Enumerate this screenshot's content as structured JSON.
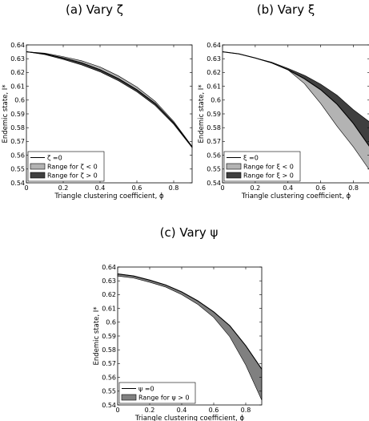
{
  "chart_data": [
    {
      "type": "area",
      "title": "(a) Vary ζ",
      "xlabel": "Triangle clustering coefficient, ϕ",
      "ylabel": "Endemic state, I*",
      "xlim": [
        0,
        0.9
      ],
      "ylim": [
        0.54,
        0.64
      ],
      "xticks": [
        "0",
        "0.2",
        "0.4",
        "0.6",
        "0.8"
      ],
      "yticks": [
        "0.54",
        "0.55",
        "0.56",
        "0.57",
        "0.58",
        "0.59",
        "0.6",
        "0.61",
        "0.62",
        "0.63",
        "0.64"
      ],
      "legend_position": "bottom-left",
      "x": [
        0,
        0.1,
        0.2,
        0.3,
        0.4,
        0.5,
        0.6,
        0.7,
        0.8,
        0.9
      ],
      "series": [
        {
          "name": "ζ =0",
          "kind": "line",
          "values": [
            0.635,
            0.6335,
            0.6305,
            0.627,
            0.622,
            0.6155,
            0.6075,
            0.5975,
            0.5835,
            0.566
          ]
        },
        {
          "name": "Range for ζ < 0",
          "kind": "band",
          "color": "#b3b3b3",
          "lower": [
            0.635,
            0.6335,
            0.6305,
            0.627,
            0.622,
            0.6155,
            0.6075,
            0.5975,
            0.5835,
            0.566
          ],
          "upper": [
            0.635,
            0.634,
            0.6315,
            0.6285,
            0.624,
            0.6175,
            0.6095,
            0.599,
            0.5845,
            0.5665
          ]
        },
        {
          "name": "Range for ζ > 0",
          "kind": "band",
          "color": "#3f3f3f",
          "lower": [
            0.635,
            0.633,
            0.6295,
            0.6255,
            0.6205,
            0.614,
            0.606,
            0.596,
            0.5825,
            0.5655
          ],
          "upper": [
            0.635,
            0.6335,
            0.6305,
            0.627,
            0.622,
            0.6155,
            0.6075,
            0.5975,
            0.5835,
            0.566
          ]
        }
      ]
    },
    {
      "type": "area",
      "title": "(b) Vary ξ",
      "xlabel": "Triangle clustering coefficient, ϕ",
      "ylabel": "Endemic state, I*",
      "xlim": [
        0,
        0.9
      ],
      "ylim": [
        0.54,
        0.64
      ],
      "xticks": [
        "0",
        "0.2",
        "0.4",
        "0.6",
        "0.8"
      ],
      "yticks": [
        "0.54",
        "0.55",
        "0.56",
        "0.57",
        "0.58",
        "0.59",
        "0.6",
        "0.61",
        "0.62",
        "0.63",
        "0.64"
      ],
      "legend_position": "bottom-left",
      "x": [
        0,
        0.1,
        0.2,
        0.3,
        0.4,
        0.5,
        0.6,
        0.7,
        0.8,
        0.9
      ],
      "series": [
        {
          "name": "ξ =0",
          "kind": "line",
          "values": [
            0.635,
            0.6335,
            0.6305,
            0.627,
            0.622,
            0.6155,
            0.6075,
            0.597,
            0.583,
            0.566
          ]
        },
        {
          "name": "Range for ξ < 0",
          "kind": "band",
          "color": "#b3b3b3",
          "lower": [
            0.635,
            0.6335,
            0.6305,
            0.627,
            0.622,
            0.612,
            0.5975,
            0.581,
            0.566,
            0.549
          ],
          "upper": [
            0.635,
            0.6335,
            0.6305,
            0.627,
            0.622,
            0.6155,
            0.6075,
            0.597,
            0.583,
            0.566
          ]
        },
        {
          "name": "Range for ξ > 0",
          "kind": "band",
          "color": "#3f3f3f",
          "lower": [
            0.635,
            0.6335,
            0.6305,
            0.627,
            0.622,
            0.6155,
            0.6075,
            0.597,
            0.583,
            0.566
          ],
          "upper": [
            0.635,
            0.6335,
            0.6305,
            0.6275,
            0.623,
            0.618,
            0.6115,
            0.6035,
            0.593,
            0.584
          ]
        }
      ]
    },
    {
      "type": "area",
      "title": "(c) Vary ψ",
      "xlabel": "Triangle clustering coefficient, ϕ",
      "ylabel": "Endemic state, I*",
      "xlim": [
        0,
        0.9
      ],
      "ylim": [
        0.54,
        0.64
      ],
      "xticks": [
        "0",
        "0.2",
        "0.4",
        "0.6",
        "0.8"
      ],
      "yticks": [
        "0.54",
        "0.55",
        "0.56",
        "0.57",
        "0.58",
        "0.59",
        "0.6",
        "0.61",
        "0.62",
        "0.63",
        "0.64"
      ],
      "legend_position": "bottom-left",
      "x": [
        0,
        0.1,
        0.2,
        0.3,
        0.4,
        0.5,
        0.6,
        0.7,
        0.8,
        0.9
      ],
      "series": [
        {
          "name": "ψ =0",
          "kind": "line",
          "values": [
            0.635,
            0.6335,
            0.6305,
            0.627,
            0.622,
            0.6155,
            0.6075,
            0.5975,
            0.583,
            0.566
          ]
        },
        {
          "name": "Range for ψ > 0",
          "kind": "band",
          "color": "#808080",
          "lower": [
            0.6335,
            0.632,
            0.629,
            0.6255,
            0.62,
            0.613,
            0.6035,
            0.5895,
            0.569,
            0.5435
          ],
          "upper": [
            0.635,
            0.6335,
            0.6305,
            0.627,
            0.622,
            0.6155,
            0.6075,
            0.5975,
            0.583,
            0.566
          ]
        }
      ]
    }
  ]
}
